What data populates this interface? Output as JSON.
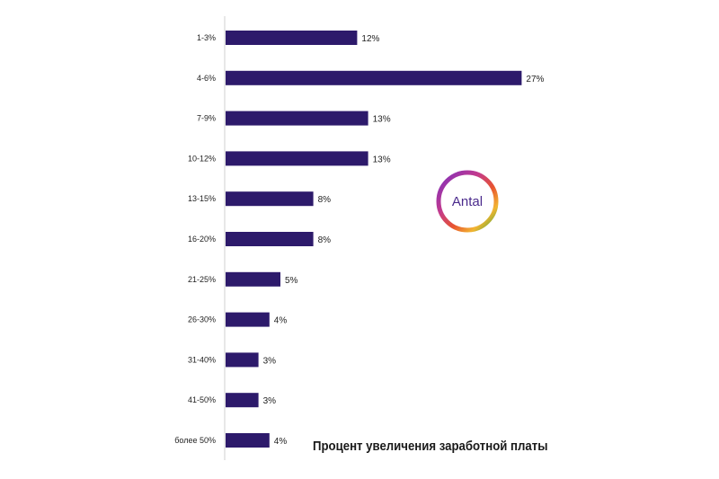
{
  "chart_data": {
    "type": "bar",
    "orientation": "horizontal",
    "categories": [
      "1-3%",
      "4-6%",
      "7-9%",
      "10-12%",
      "13-15%",
      "16-20%",
      "21-25%",
      "26-30%",
      "31-40%",
      "41-50%",
      "более 50%"
    ],
    "values": [
      12,
      27,
      13,
      13,
      8,
      8,
      5,
      4,
      3,
      3,
      4
    ],
    "value_labels": [
      "12%",
      "27%",
      "13%",
      "13%",
      "8%",
      "8%",
      "5%",
      "4%",
      "3%",
      "3%",
      "4%"
    ],
    "bar_color": "#2d1a6b",
    "title": "",
    "xlabel": "",
    "ylabel": "",
    "grid": false,
    "legend": "none"
  },
  "caption": "Процент увеличения заработной платы",
  "logo": {
    "text": "Antal",
    "text_color": "#4a2a8c"
  }
}
